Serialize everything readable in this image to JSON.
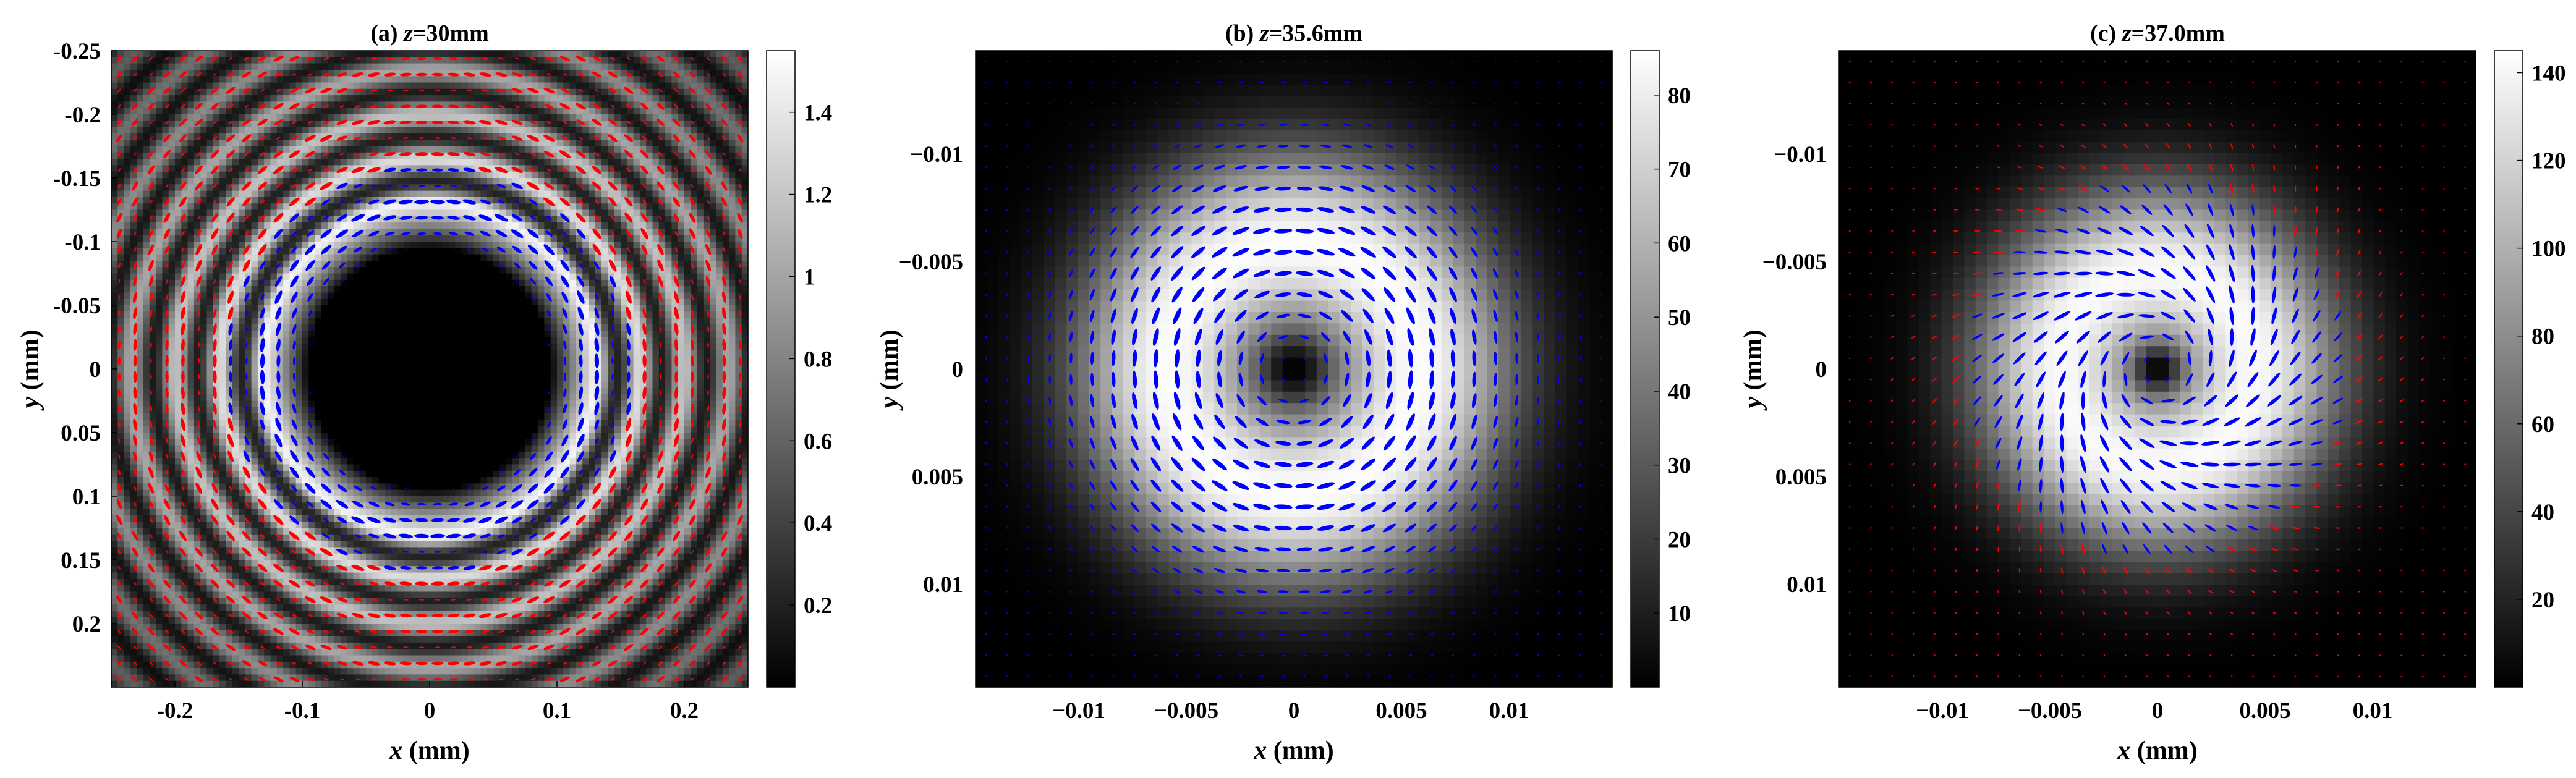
{
  "chart_data": [
    {
      "type": "heatmap",
      "title_prefix": "(a)",
      "title_var": "z",
      "title_value": "=30mm",
      "title": "(a) z=30mm",
      "xlabel_var": "x",
      "xlabel_unit": " (mm)",
      "ylabel_var": "y",
      "ylabel_unit": " (mm)",
      "xlim": [
        -0.25,
        0.25
      ],
      "ylim": [
        -0.25,
        0.25
      ],
      "y_reversed": true,
      "xticks": [
        -0.2,
        -0.1,
        0,
        0.1,
        0.2
      ],
      "xtick_labels": [
        "-0.2",
        "-0.1",
        "0",
        "0.1",
        "0.2"
      ],
      "yticks": [
        -0.25,
        -0.2,
        -0.15,
        -0.1,
        -0.05,
        0,
        0.05,
        0.1,
        0.15,
        0.2
      ],
      "ytick_labels": [
        "-0.25",
        "-0.2",
        "-0.15",
        "-0.1",
        "-0.05",
        "0",
        "0.05",
        "0.1",
        "0.15",
        "0.2"
      ],
      "colorbar": {
        "colormap": "gray",
        "range": [
          0,
          1.55
        ],
        "ticks": [
          0.2,
          0.4,
          0.6,
          0.8,
          1,
          1.2,
          1.4
        ],
        "tick_labels": [
          "0.2",
          "0.4",
          "0.6",
          "0.8",
          "1",
          "1.2",
          "1.4"
        ]
      },
      "intensity_pattern": {
        "kind": "ring_with_fringes",
        "dark_core_radius": 0.095,
        "ring_peak_radius": 0.13,
        "fringe_period": 0.035,
        "peak_value": 1.5
      },
      "polarization_ellipses": {
        "colors": {
          "right_handed": "#ff0000",
          "left_handed": "#0000ff"
        },
        "inner_handedness": "left_handed",
        "outer_handedness": "right_handed",
        "orientation": "azimuthal",
        "ellipticity": 0.3
      }
    },
    {
      "type": "heatmap",
      "title_prefix": "(b)",
      "title_var": "z",
      "title_value": "=35.6mm",
      "title": "(b) z=35.6mm",
      "xlabel_var": "x",
      "xlabel_unit": " (mm)",
      "ylabel_var": "y",
      "ylabel_unit": " (mm)",
      "xlim": [
        -0.0148,
        0.0148
      ],
      "ylim": [
        -0.0148,
        0.0148
      ],
      "y_reversed": true,
      "xticks": [
        -0.01,
        -0.005,
        0,
        0.005,
        0.01
      ],
      "xtick_labels": [
        "−0.01",
        "−0.005",
        "0",
        "0.005",
        "0.01"
      ],
      "yticks": [
        -0.01,
        -0.005,
        0,
        0.005,
        0.01
      ],
      "ytick_labels": [
        "−0.01",
        "−0.005",
        "0",
        "0.005",
        "0.01"
      ],
      "colorbar": {
        "colormap": "gray",
        "range": [
          0,
          86
        ],
        "ticks": [
          10,
          20,
          30,
          40,
          50,
          60,
          70,
          80
        ],
        "tick_labels": [
          "10",
          "20",
          "30",
          "40",
          "50",
          "60",
          "70",
          "80"
        ]
      },
      "intensity_pattern": {
        "kind": "donut",
        "dark_core_radius": 0.0008,
        "ring_peak_radius": 0.0058,
        "ring_width": 0.0045,
        "peak_value": 85
      },
      "polarization_ellipses": {
        "colors": {
          "right_handed": "#ff0000",
          "left_handed": "#0000ff"
        },
        "handedness": "left_handed",
        "orientation": "azimuthal",
        "ellipticity": 0.25
      }
    },
    {
      "type": "heatmap",
      "title_prefix": "(c)",
      "title_var": "z",
      "title_value": "=37.0mm",
      "title": "(c) z=37.0mm",
      "xlabel_var": "x",
      "xlabel_unit": " (mm)",
      "ylabel_var": "y",
      "ylabel_unit": " (mm)",
      "xlim": [
        -0.0148,
        0.0148
      ],
      "ylim": [
        -0.0148,
        0.0148
      ],
      "y_reversed": true,
      "xticks": [
        -0.01,
        -0.005,
        0,
        0.005,
        0.01
      ],
      "xtick_labels": [
        "−0.01",
        "−0.005",
        "0",
        "0.005",
        "0.01"
      ],
      "yticks": [
        -0.01,
        -0.005,
        0,
        0.005,
        0.01
      ],
      "ytick_labels": [
        "−0.01",
        "−0.005",
        "0",
        "0.005",
        "0.01"
      ],
      "colorbar": {
        "colormap": "gray",
        "range": [
          0,
          145
        ],
        "ticks": [
          20,
          40,
          60,
          80,
          100,
          120,
          140
        ],
        "tick_labels": [
          "20",
          "40",
          "60",
          "80",
          "100",
          "120",
          "140"
        ]
      },
      "intensity_pattern": {
        "kind": "donut",
        "dark_core_radius": 0.0006,
        "ring_peak_radius": 0.0045,
        "ring_width": 0.0042,
        "peak_value": 142
      },
      "polarization_ellipses": {
        "colors": {
          "right_handed": "#ff0000",
          "left_handed": "#0000ff"
        },
        "inner_handedness": "left_handed",
        "outer_handedness": "right_handed",
        "orientation": "spiral",
        "ellipticity": 0.2
      }
    }
  ]
}
